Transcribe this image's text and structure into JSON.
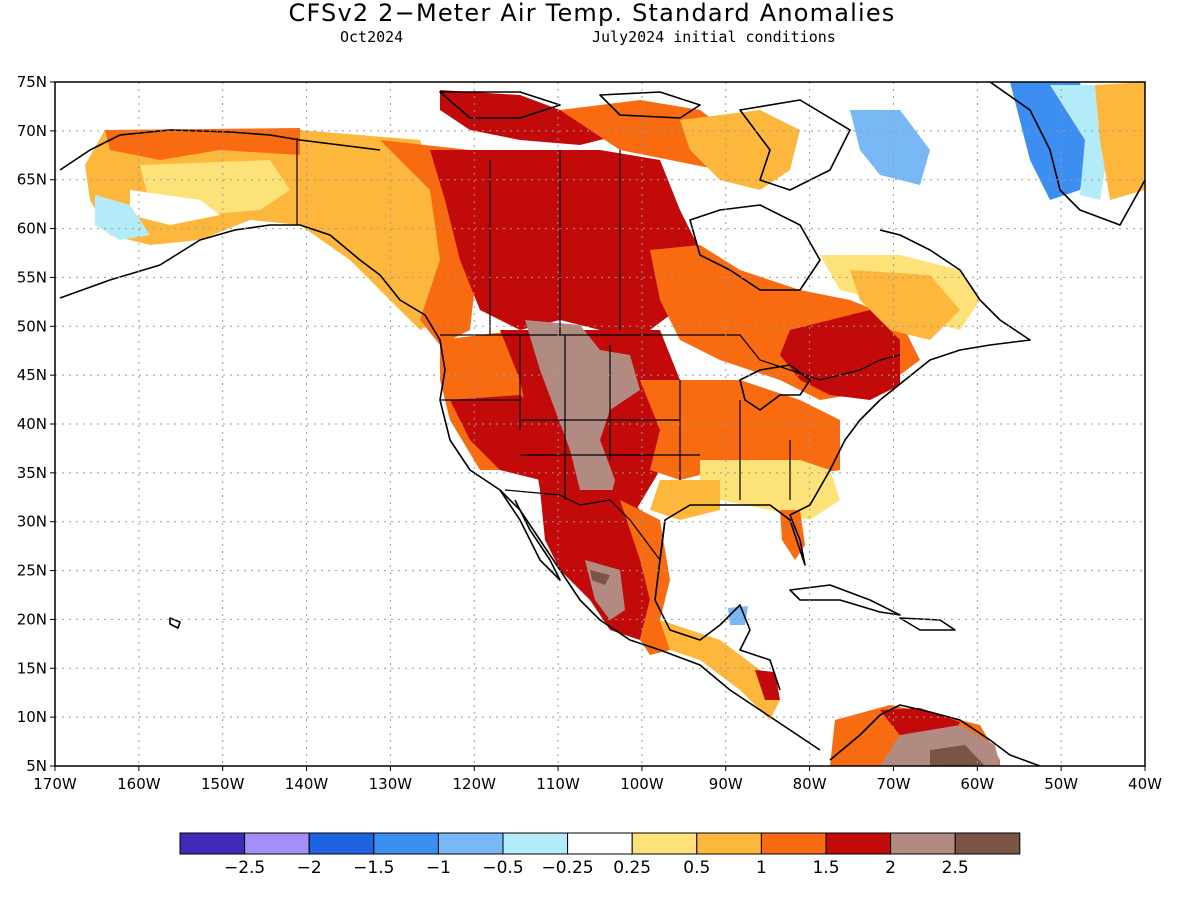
{
  "title": "CFSv2 2−Meter Air Temp. Standard Anomalies",
  "subtitle_left": "Oct2024",
  "subtitle_right": "July2024 initial conditions",
  "map": {
    "lon_min": -170,
    "lon_max": -40,
    "lat_min": 5,
    "lat_max": 75,
    "lat_ticks": [
      "75N",
      "70N",
      "65N",
      "60N",
      "55N",
      "50N",
      "45N",
      "40N",
      "35N",
      "30N",
      "25N",
      "20N",
      "15N",
      "10N",
      "5N"
    ],
    "lat_values": [
      75,
      70,
      65,
      60,
      55,
      50,
      45,
      40,
      35,
      30,
      25,
      20,
      15,
      10,
      5
    ],
    "lon_ticks": [
      "170W",
      "160W",
      "150W",
      "140W",
      "130W",
      "120W",
      "110W",
      "100W",
      "90W",
      "80W",
      "70W",
      "60W",
      "50W",
      "40W"
    ],
    "lon_values": [
      -170,
      -160,
      -150,
      -140,
      -130,
      -120,
      -110,
      -100,
      -90,
      -80,
      -70,
      -60,
      -50,
      -40
    ],
    "gridlines": true,
    "colors": {
      "ocean": "#ffffff",
      "land": "#ffffff",
      "coast": "#000000",
      "grid": "#9a9a9a"
    }
  },
  "colorbar": {
    "colors": [
      "#3f2bb8",
      "#a38ff7",
      "#2063e0",
      "#3c8ef0",
      "#78b9f5",
      "#b3ecf8",
      "#ffffff",
      "#fde27a",
      "#fdb73d",
      "#f96b10",
      "#c20a0a",
      "#b18b81",
      "#7a5445"
    ],
    "labels": [
      "−2.5",
      "−2",
      "−1.5",
      "−1",
      "−0.5",
      "−0.25",
      "0.25",
      "0.5",
      "1",
      "1.5",
      "2",
      "2.5"
    ]
  }
}
